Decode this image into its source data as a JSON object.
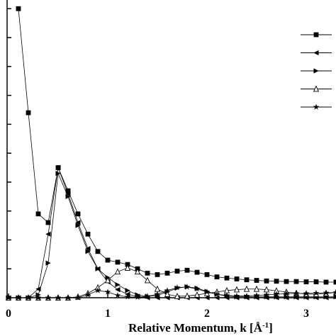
{
  "chart_data": {
    "type": "line",
    "x_label_parts": [
      "Relative Momentum, k [Å",
      "-1",
      "]"
    ],
    "x": [
      0,
      0.1,
      0.2,
      0.3,
      0.4,
      0.5,
      0.6,
      0.7,
      0.8,
      0.9,
      1.0,
      1.1,
      1.2,
      1.3,
      1.4,
      1.5,
      1.6,
      1.7,
      1.8,
      1.9,
      2.0,
      2.1,
      2.2,
      2.3,
      2.4,
      2.5,
      2.6,
      2.7,
      2.8,
      2.9,
      3.0,
      3.1,
      3.2,
      3.3
    ],
    "xlim": [
      0,
      3.3
    ],
    "xticks": [
      0,
      1,
      2,
      3
    ],
    "ylim": [
      0,
      10.3
    ],
    "yticks": [
      0,
      1,
      2,
      3,
      4,
      5,
      6,
      7,
      8,
      9,
      10
    ],
    "legend": "upper right",
    "series": [
      {
        "marker": "square",
        "color": "#000000",
        "values": [
          null,
          10,
          6.4,
          2.9,
          2.6,
          4.5,
          3.7,
          2.9,
          2.2,
          1.6,
          1.3,
          1.23,
          1.15,
          1.0,
          0.85,
          0.8,
          0.85,
          0.92,
          0.95,
          0.88,
          0.8,
          0.72,
          0.68,
          0.65,
          0.62,
          0.6,
          0.58,
          0.57,
          0.56,
          0.56,
          0.55,
          0.55,
          0.54,
          0.54
        ]
      },
      {
        "marker": "triangle-left",
        "color": "#000000",
        "values": [
          0,
          0,
          0,
          0.3,
          2.2,
          4.5,
          3.6,
          2.6,
          1.7,
          1.0,
          0.55,
          0.28,
          0.12,
          0.05,
          0,
          0,
          0,
          0,
          0,
          0,
          0,
          0,
          0,
          0,
          0,
          0,
          0,
          0,
          0,
          0,
          0,
          0,
          0,
          0
        ]
      },
      {
        "marker": "triangle-right",
        "color": "#000000",
        "values": [
          0,
          0,
          0,
          0.1,
          1.2,
          4.3,
          3.5,
          2.5,
          1.6,
          1.0,
          0.7,
          0.45,
          0.25,
          0.1,
          0.05,
          0.08,
          0.2,
          0.33,
          0.38,
          0.33,
          0.22,
          0.12,
          0.06,
          0.03,
          0.03,
          0.03,
          0.03,
          0.03,
          0.03,
          0.03,
          0.03,
          0.03,
          0.03,
          0.03
        ]
      },
      {
        "marker": "triangle-up-open",
        "color": "#000000",
        "values": [
          0,
          0,
          0,
          0,
          0,
          0,
          0,
          0.03,
          0.15,
          0.35,
          0.6,
          0.9,
          1.03,
          0.9,
          0.6,
          0.3,
          0.12,
          0.05,
          0.06,
          0.1,
          0.15,
          0.2,
          0.25,
          0.28,
          0.3,
          0.3,
          0.28,
          0.24,
          0.2,
          0.16,
          0.13,
          0.12,
          0.15,
          0.18
        ]
      },
      {
        "marker": "star",
        "color": "#000000",
        "values": [
          0,
          0,
          0,
          0,
          0,
          0,
          0,
          0,
          0.1,
          0.25,
          0.2,
          0.08,
          0.03,
          0.02,
          0.05,
          0.12,
          0.25,
          0.35,
          0.37,
          0.3,
          0.2,
          0.12,
          0.08,
          0.06,
          0.06,
          0.08,
          0.1,
          0.12,
          0.14,
          0.15,
          0.15,
          0.16,
          0.17,
          0.18
        ]
      }
    ]
  }
}
